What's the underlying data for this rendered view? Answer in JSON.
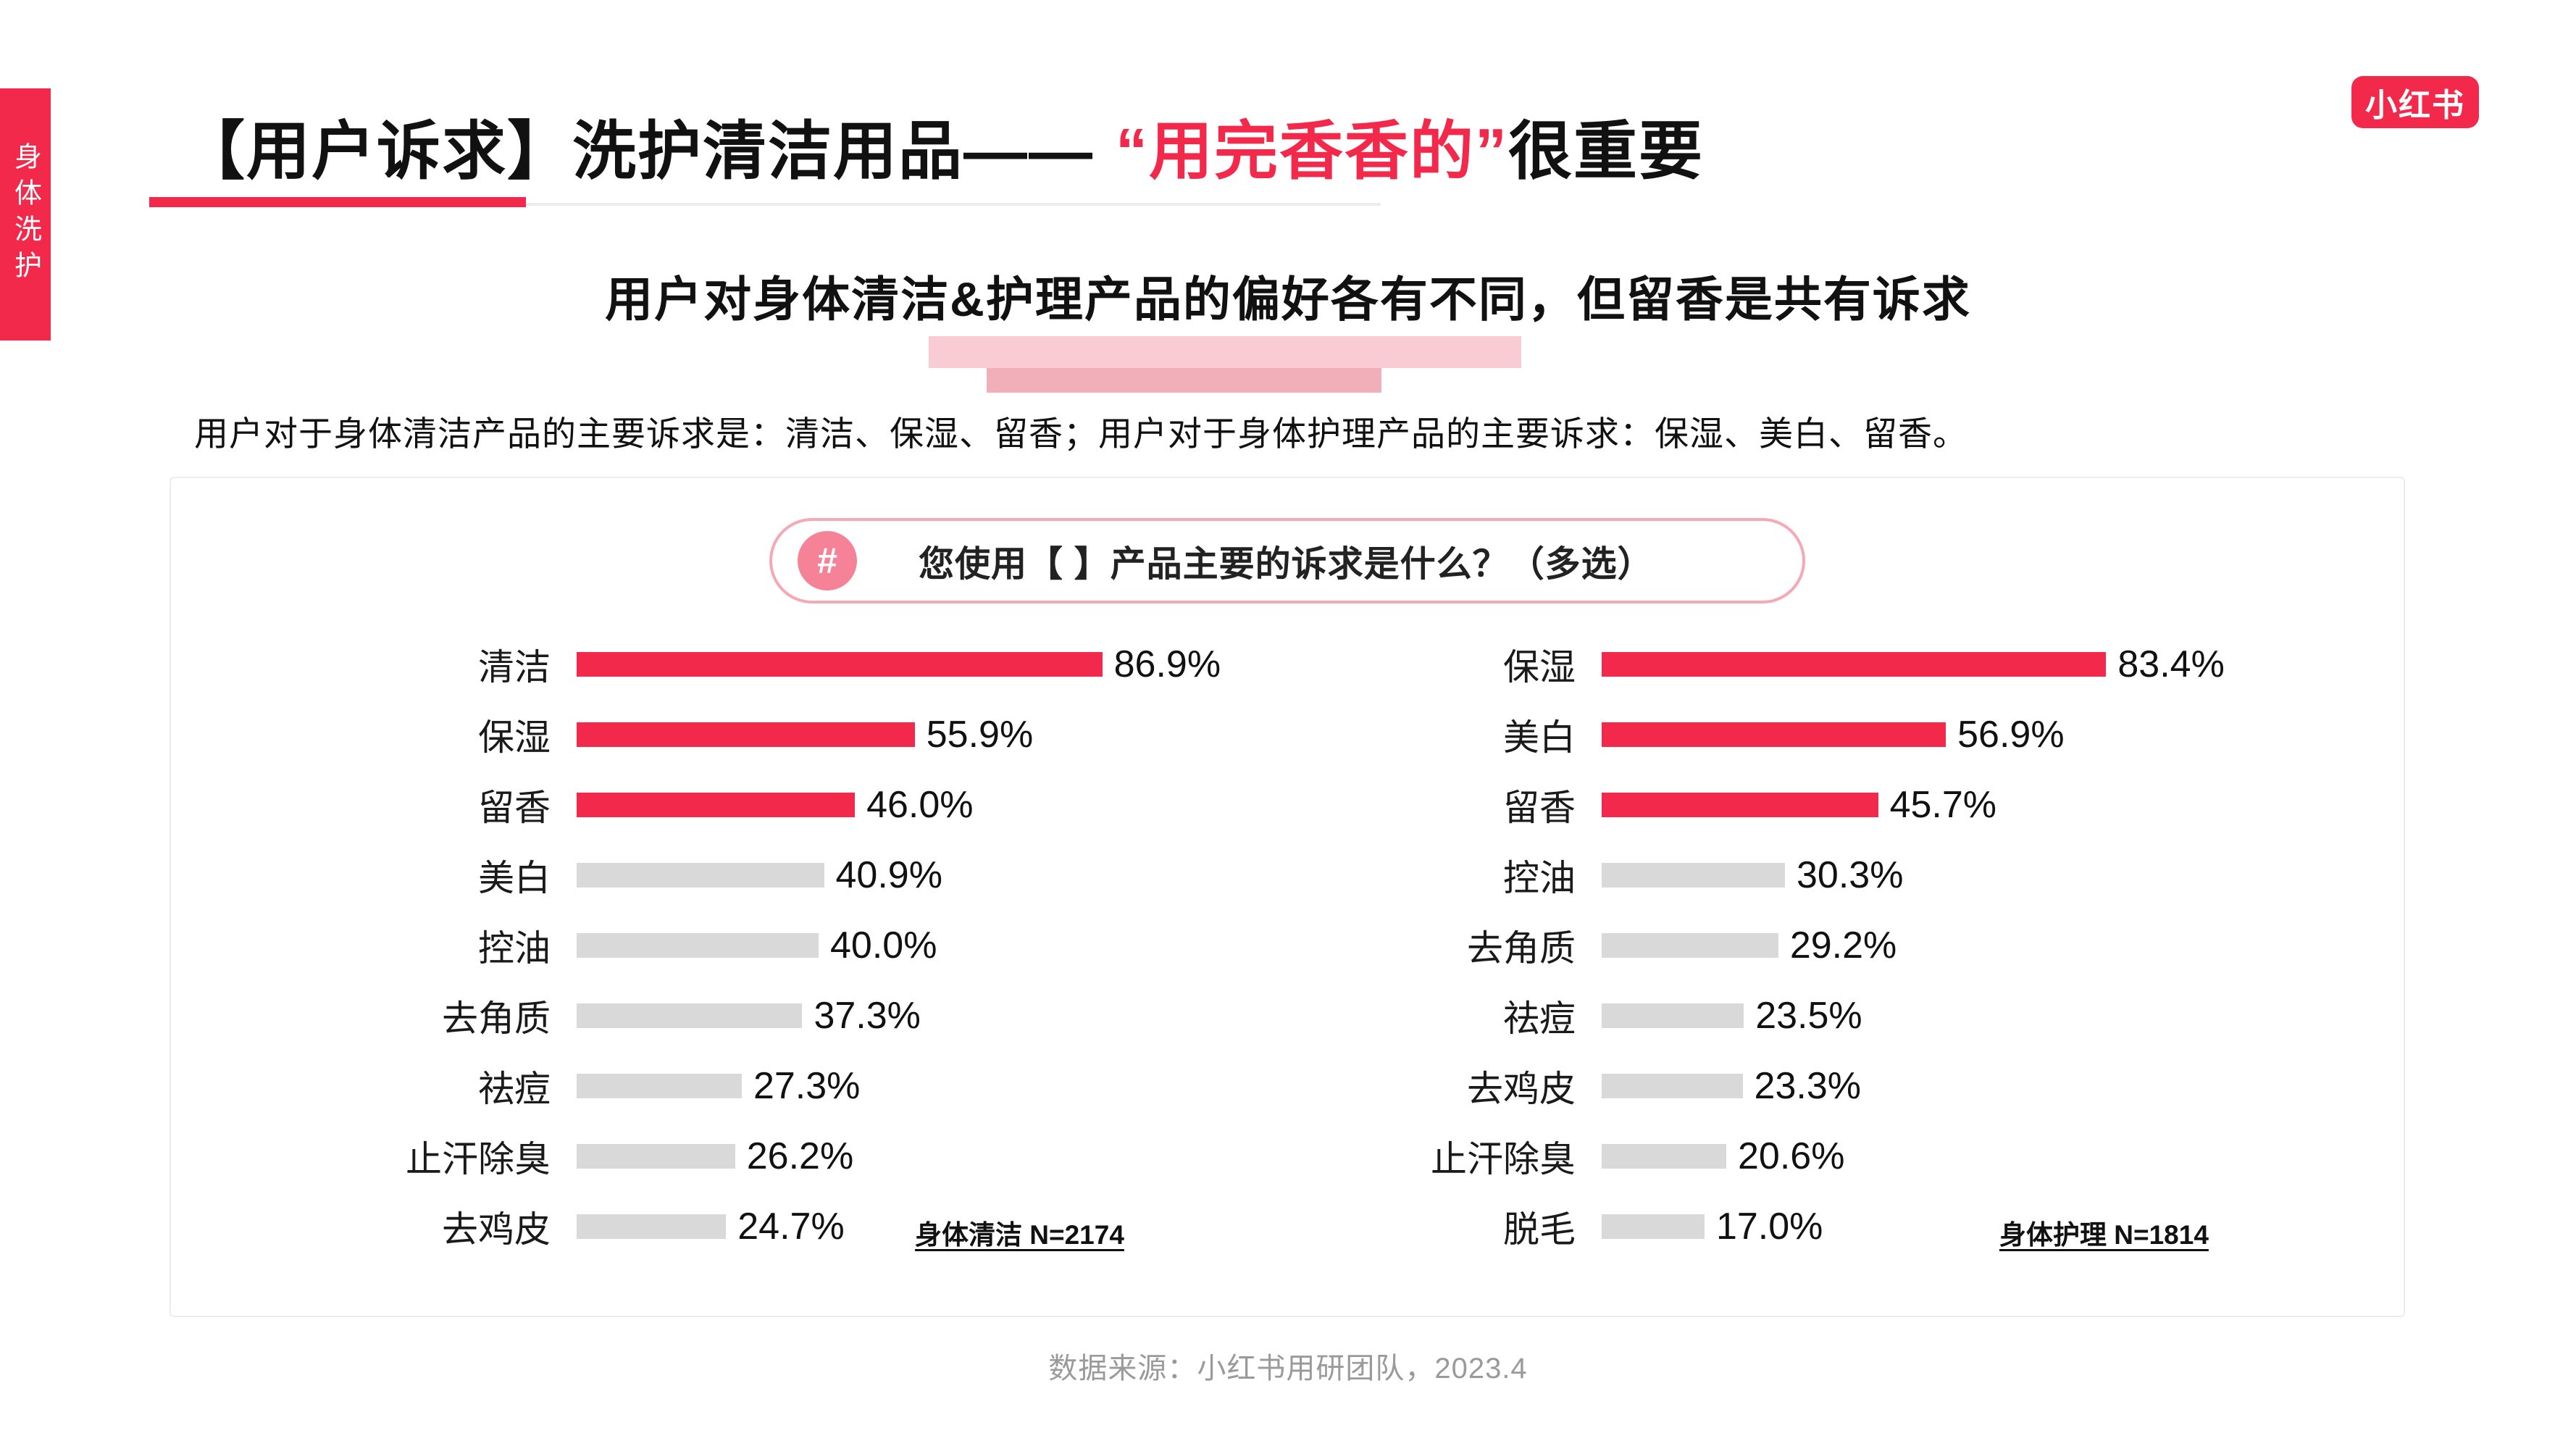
{
  "colors": {
    "accent": "#F2294B",
    "bar_highlight": "#F2294B",
    "bar_normal": "#D9D9D9",
    "pill-border": "#F5A9B4",
    "badge": "#F58296",
    "hl-light": "#F8CCD2",
    "hl-mid": "#F0AFB9"
  },
  "sidebar_tab": {
    "label": "身体洗护"
  },
  "logo": {
    "text": "小红书"
  },
  "title": {
    "part1": "【用户诉求】洗护清洁用品——",
    "part2": "“用完香香的”",
    "part3": "很重要"
  },
  "subtitle": "用户对身体清洁&护理产品的偏好各有不同，但留香是共有诉求",
  "description": "用户对于身体清洁产品的主要诉求是：清洁、保湿、留香；用户对于身体护理产品的主要诉求：保湿、美白、留香。",
  "question": {
    "badge": "#",
    "text": "您使用【 】产品主要的诉求是什么？（多选）"
  },
  "footer": "数据来源：小红书用研团队，2023.4",
  "chart_data": [
    {
      "type": "bar",
      "orientation": "horizontal",
      "title": "身体清洁",
      "sample_label": "身体清洁 N=2174",
      "unit": "%",
      "xlim": [
        0,
        100
      ],
      "grid": false,
      "highlight_count": 3,
      "categories": [
        "清洁",
        "保湿",
        "留香",
        "美白",
        "控油",
        "去角质",
        "祛痘",
        "止汗除臭",
        "去鸡皮"
      ],
      "values": [
        86.9,
        55.9,
        46.0,
        40.9,
        40.0,
        37.3,
        27.3,
        26.2,
        24.7
      ]
    },
    {
      "type": "bar",
      "orientation": "horizontal",
      "title": "身体护理",
      "sample_label": "身体护理 N=1814",
      "unit": "%",
      "xlim": [
        0,
        100
      ],
      "grid": false,
      "highlight_count": 3,
      "categories": [
        "保湿",
        "美白",
        "留香",
        "控油",
        "去角质",
        "祛痘",
        "去鸡皮",
        "止汗除臭",
        "脱毛"
      ],
      "values": [
        83.4,
        56.9,
        45.7,
        30.3,
        29.2,
        23.5,
        23.3,
        20.6,
        17.0
      ]
    }
  ]
}
